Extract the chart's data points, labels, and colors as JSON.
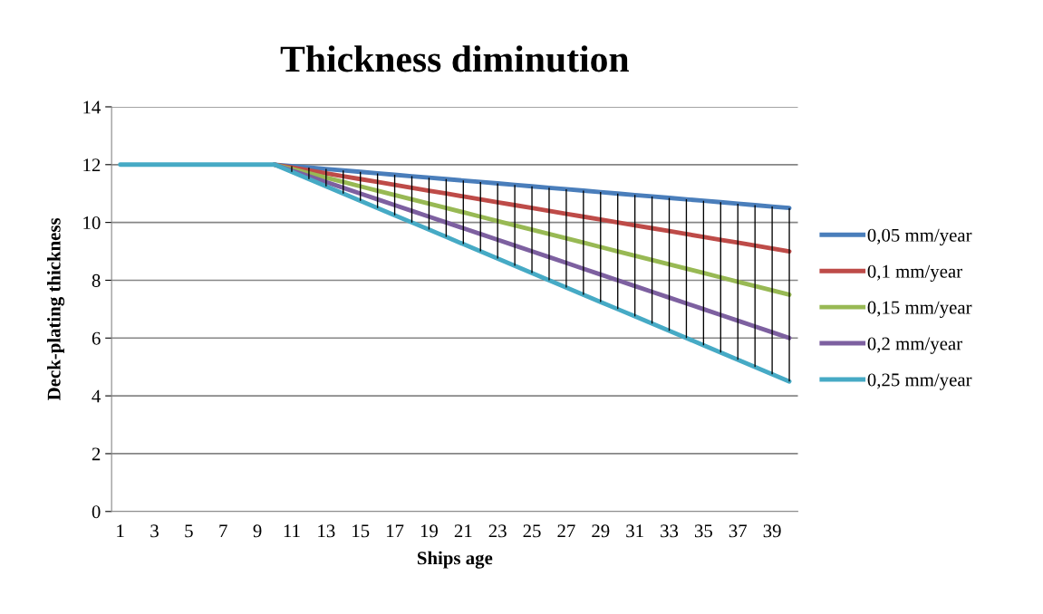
{
  "chart_data": {
    "type": "line",
    "title": "Thickness diminution",
    "xlabel": "Ships age",
    "ylabel": "Deck-plating thickness",
    "categories": [
      "1",
      null,
      "3",
      null,
      "5",
      null,
      "7",
      null,
      "9",
      null,
      "11",
      null,
      "13",
      null,
      "15",
      null,
      "17",
      null,
      "19",
      null,
      "21",
      null,
      "23",
      null,
      "25",
      null,
      "27",
      null,
      "29",
      null,
      "31",
      null,
      "33",
      null,
      "35",
      null,
      "37",
      null,
      "39",
      null
    ],
    "ylim": [
      0,
      14
    ],
    "yticks": [
      0,
      2,
      4,
      6,
      8,
      10,
      12,
      14
    ],
    "grid": "y",
    "legend": "right",
    "marker": "none",
    "line_style": "solid",
    "series": [
      {
        "type": "bar",
        "color": "#000000",
        "base": [
          null,
          null,
          null,
          null,
          null,
          null,
          null,
          null,
          null,
          null,
          11.75,
          11.5,
          11.25,
          11,
          10.75,
          10.5,
          10.25,
          10,
          9.75,
          9.5,
          9.25,
          9,
          8.75,
          8.5,
          8.25,
          8,
          7.75,
          7.5,
          7.25,
          7,
          6.75,
          6.5,
          6.25,
          6,
          5.75,
          5.5,
          5.25,
          5,
          4.75,
          4.5
        ],
        "values": [
          null,
          null,
          null,
          null,
          null,
          null,
          null,
          null,
          null,
          null,
          0.2,
          0.4,
          0.6,
          0.8,
          1,
          1.2,
          1.4,
          1.6,
          1.8,
          2,
          2.2,
          2.4,
          2.6,
          2.8,
          3,
          3.2,
          3.4,
          3.6,
          3.8,
          4,
          4.2,
          4.4,
          4.6,
          4.8,
          5,
          5.2,
          5.4,
          5.6,
          5.8,
          6
        ]
      },
      {
        "name": "0,05 mm/year",
        "color": "#4a7ebb",
        "values": [
          null,
          null,
          null,
          null,
          null,
          null,
          null,
          null,
          null,
          12,
          11.95,
          11.9,
          11.85,
          11.8,
          11.75,
          11.7,
          11.65,
          11.6,
          11.55,
          11.5,
          11.45,
          11.4,
          11.35,
          11.3,
          11.25,
          11.2,
          11.15,
          11.1,
          11.05,
          11,
          10.95,
          10.9,
          10.85,
          10.8,
          10.75,
          10.7,
          10.65,
          10.6,
          10.55,
          10.5
        ]
      },
      {
        "name": "0,1 mm/year",
        "color": "#be4b48",
        "values": [
          null,
          null,
          null,
          null,
          null,
          null,
          null,
          null,
          null,
          12,
          11.9,
          11.8,
          11.7,
          11.6,
          11.5,
          11.4,
          11.3,
          11.2,
          11.1,
          11,
          10.9,
          10.8,
          10.7,
          10.6,
          10.5,
          10.4,
          10.3,
          10.2,
          10.1,
          10,
          9.9,
          9.8,
          9.7,
          9.6,
          9.5,
          9.4,
          9.3,
          9.2,
          9.1,
          9
        ]
      },
      {
        "name": "0,15 mm/year",
        "color": "#98b954",
        "values": [
          null,
          null,
          null,
          null,
          null,
          null,
          null,
          null,
          null,
          12,
          11.85,
          11.7,
          11.55,
          11.4,
          11.25,
          11.1,
          10.95,
          10.8,
          10.65,
          10.5,
          10.35,
          10.2,
          10.05,
          9.9,
          9.75,
          9.6,
          9.45,
          9.3,
          9.15,
          9,
          8.85,
          8.7,
          8.55,
          8.4,
          8.25,
          8.1,
          7.95,
          7.8,
          7.65,
          7.5
        ]
      },
      {
        "name": "0,2 mm/year",
        "color": "#7d60a0",
        "values": [
          null,
          null,
          null,
          null,
          null,
          null,
          null,
          null,
          null,
          12,
          11.8,
          11.6,
          11.4,
          11.2,
          11,
          10.8,
          10.6,
          10.4,
          10.2,
          10,
          9.8,
          9.6,
          9.4,
          9.2,
          9,
          8.8,
          8.6,
          8.4,
          8.2,
          8,
          7.8,
          7.6,
          7.4,
          7.2,
          7,
          6.8,
          6.6,
          6.4,
          6.2,
          6
        ]
      },
      {
        "name": "0,25 mm/year",
        "color": "#46aac5",
        "values": [
          12,
          12,
          12,
          12,
          12,
          12,
          12,
          12,
          12,
          12,
          11.75,
          11.5,
          11.25,
          11,
          10.75,
          10.5,
          10.25,
          10,
          9.75,
          9.5,
          9.25,
          9,
          8.75,
          8.5,
          8.25,
          8,
          7.75,
          7.5,
          7.25,
          7,
          6.75,
          6.5,
          6.25,
          6,
          5.75,
          5.5,
          5.25,
          5,
          4.75,
          4.5
        ]
      }
    ]
  }
}
